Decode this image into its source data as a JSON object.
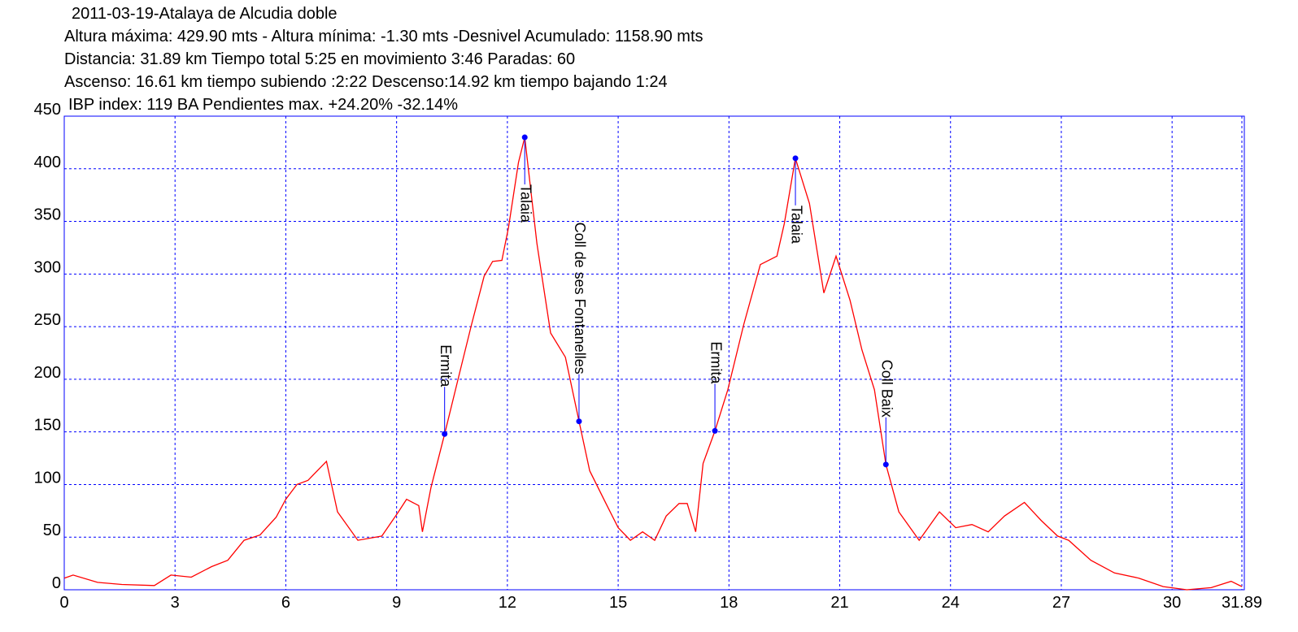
{
  "chart_data": {
    "type": "line",
    "title": "2011-03-19-Atalaya de Alcudia doble",
    "subtitle": [
      "Altura máxima: 429.90 mts - Altura mínima: -1.30 mts -Desnivel Acumulado: 1158.90 mts",
      "Distancia: 31.89 km  Tiempo total 5:25  en movimiento 3:46 Paradas: 60",
      "Ascenso: 16.61 km  tiempo subiendo :2:22  Descenso:14.92 km tiempo bajando 1:24",
      "IBP index: 119 BA Pendientes max. +24.20%  -32.14%"
    ],
    "x": [
      0,
      0.24,
      0.9,
      1.56,
      2.44,
      2.89,
      3.44,
      3.99,
      4.43,
      4.87,
      5.3,
      5.74,
      6.0,
      6.3,
      6.6,
      7.1,
      7.4,
      7.95,
      8.6,
      9.05,
      9.27,
      9.6,
      9.7,
      9.93,
      10.3,
      10.7,
      11.03,
      11.37,
      11.6,
      11.85,
      12.03,
      12.3,
      12.47,
      12.8,
      13.17,
      13.57,
      13.94,
      14.23,
      14.67,
      15.0,
      15.33,
      15.66,
      15.99,
      16.3,
      16.65,
      16.87,
      17.1,
      17.3,
      17.62,
      17.97,
      18.4,
      18.85,
      19.3,
      19.5,
      19.8,
      20.18,
      20.57,
      20.9,
      21.28,
      21.6,
      21.94,
      22.25,
      22.6,
      23.15,
      23.7,
      24.14,
      24.58,
      25.02,
      25.46,
      26.0,
      26.45,
      26.9,
      27.2,
      27.8,
      28.44,
      29.1,
      29.76,
      30.4,
      31.06,
      31.6,
      31.89
    ],
    "values": [
      11,
      14,
      7,
      5,
      4,
      14,
      12,
      22,
      28,
      47,
      52,
      69,
      86,
      100,
      104,
      122,
      74,
      47,
      51,
      74,
      86,
      80,
      55,
      97,
      148,
      205,
      252,
      298,
      312,
      313,
      344,
      406,
      429.9,
      329,
      244,
      221,
      160,
      113,
      82,
      59,
      47,
      55,
      47,
      70,
      82,
      82,
      55,
      120,
      151,
      190,
      252,
      309,
      317,
      348,
      410,
      367,
      282,
      317,
      275,
      228,
      190,
      119,
      74,
      47,
      74,
      59,
      62,
      55,
      70,
      83,
      66,
      51,
      47,
      28,
      16,
      11,
      3,
      0,
      2,
      8,
      3
    ],
    "color": "#ff0000",
    "annotations": [
      {
        "label": "Ermita",
        "x": 10.3,
        "y": 148
      },
      {
        "label": "Talaia",
        "x": 12.47,
        "y": 429.9
      },
      {
        "label": "Coll de ses Fontanelles",
        "x": 13.94,
        "y": 160
      },
      {
        "label": "Ermita",
        "x": 17.62,
        "y": 151
      },
      {
        "label": "Talaia",
        "x": 19.8,
        "y": 410
      },
      {
        "label": "Coll Baix",
        "x": 22.25,
        "y": 119
      }
    ],
    "marker_color": "#0000ff",
    "xlim": [
      0,
      31.89
    ],
    "xticks": [
      0,
      3,
      6,
      9,
      12,
      15,
      18,
      21,
      24,
      27,
      30,
      31.89
    ],
    "ylim": [
      0,
      450
    ],
    "yticks": [
      0,
      50,
      100,
      150,
      200,
      250,
      300,
      350,
      400,
      450
    ],
    "grid": true,
    "grid_color": "#0000ff"
  }
}
